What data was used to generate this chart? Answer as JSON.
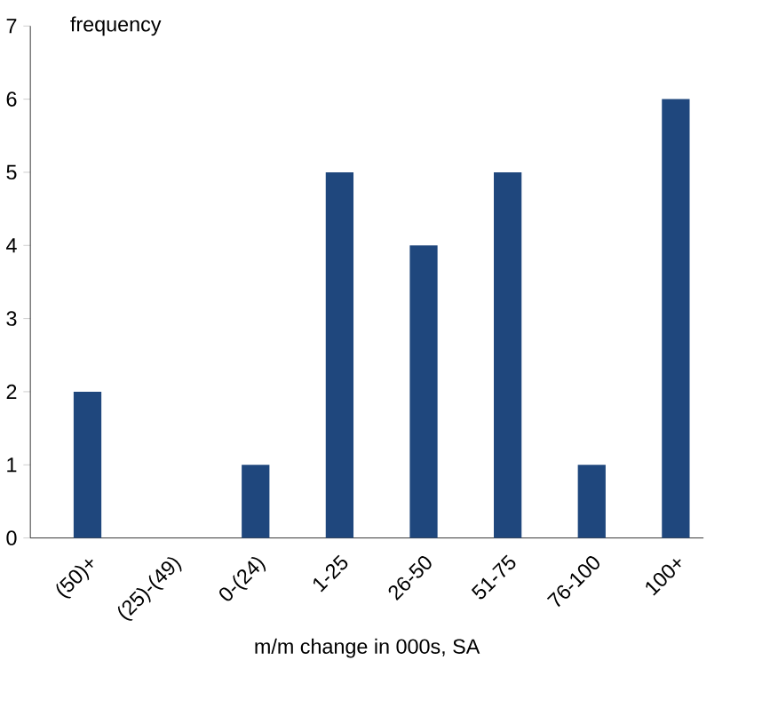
{
  "chart_data": {
    "type": "bar",
    "ylabel": "frequency",
    "xlabel": "m/m change in 000s, SA",
    "categories": [
      "(50)+",
      "(25)-(49)",
      "0-(24)",
      "1-25",
      "26-50",
      "51-75",
      "76-100",
      "100+"
    ],
    "values": [
      2,
      0,
      1,
      5,
      4,
      5,
      1,
      6
    ],
    "color": "#1f477d",
    "ylim": [
      0,
      7
    ],
    "yticks": [
      0,
      1,
      2,
      3,
      4,
      5,
      6,
      7
    ],
    "grid": false
  }
}
